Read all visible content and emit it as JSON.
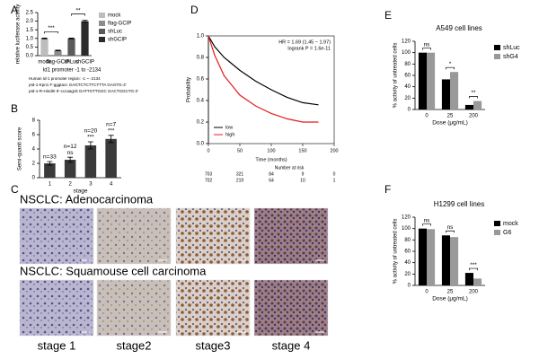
{
  "panel_letters": [
    "A",
    "B",
    "C",
    "D",
    "E",
    "F"
  ],
  "chart_data": [
    {
      "type": "bar",
      "ylabel": "relative luciferase activity",
      "categories": [
        "mock",
        "flag-GCIP",
        "shLuc",
        "shGCIP"
      ],
      "values": [
        1.0,
        0.3,
        1.0,
        2.0
      ],
      "errors": [
        0.02,
        0.02,
        0.02,
        0.05
      ],
      "colors": [
        "#bdbdbd",
        "#8c8c8c",
        "#5a5a5a",
        "#2b2b2b"
      ],
      "ylim": [
        0,
        2.5
      ],
      "yticks": [
        {
          "value": 0,
          "label": "0.0"
        },
        {
          "value": 0.5,
          "label": "0.5"
        },
        {
          "value": 1,
          "label": "1.0"
        },
        {
          "value": 1.5,
          "label": "1.5"
        },
        {
          "value": 2,
          "label": "2.0"
        },
        {
          "value": 2.5,
          "label": "2.5"
        }
      ],
      "legend": true,
      "significance": [
        "***",
        "**"
      ],
      "caption": "Id1 promoter -1 to -2134",
      "notes": [
        "Human Id-1 promoter region: -1 ~ -2134",
        "pId-1-Kpn1 F-gggtacc GAGTCTCTTCTTTA GAGTG-3'",
        "pId-1-R-HindIII 5'-cccaagctt GATTGTTGGC GACTGGCTG-3'"
      ]
    },
    {
      "type": "bar",
      "ylabel": "Semi-quanti score",
      "xlabel": "stage",
      "categories": [
        "1",
        "2",
        "3",
        "4"
      ],
      "values": [
        2.0,
        2.5,
        4.5,
        5.4
      ],
      "errors": [
        0.25,
        0.35,
        0.5,
        0.5
      ],
      "color": "#3a3a3a",
      "ylim": [
        0,
        8
      ],
      "yticks": [
        0,
        2,
        4,
        6,
        8
      ],
      "labels": [
        [
          "n=33"
        ],
        [
          "n=12",
          "ns"
        ],
        [
          "n=20",
          "***"
        ],
        [
          "n=7",
          "***"
        ]
      ]
    },
    {
      "type": "line",
      "ylabel": "Probability",
      "xlabel": "Time (months)",
      "x": [
        0,
        10,
        25,
        50,
        75,
        100,
        125,
        150,
        175
      ],
      "series": [
        {
          "name": "low",
          "color": "#000000",
          "values": [
            1.0,
            0.9,
            0.8,
            0.68,
            0.58,
            0.5,
            0.43,
            0.38,
            0.36
          ]
        },
        {
          "name": "high",
          "color": "#e41a1c",
          "values": [
            1.0,
            0.82,
            0.63,
            0.45,
            0.35,
            0.28,
            0.23,
            0.2,
            0.2
          ]
        }
      ],
      "xlim": [
        0,
        200
      ],
      "xticks": [
        0,
        50,
        100,
        150,
        200
      ],
      "ylim": [
        0,
        1
      ],
      "yticks": [
        {
          "value": 0,
          "label": "0.0"
        },
        {
          "value": 0.2,
          "label": "0.2"
        },
        {
          "value": 0.4,
          "label": "0.4"
        },
        {
          "value": 0.6,
          "label": "0.6"
        },
        {
          "value": 0.8,
          "label": "0.8"
        },
        {
          "value": 1,
          "label": "1.0"
        }
      ],
      "annotations": [
        "HR = 1.69 (1.45 − 1.97)",
        "logrank P = 1.6e-11"
      ],
      "risk_table": {
        "title": "Number at risk",
        "rows": [
          [
            "703",
            "321",
            "84",
            "9",
            "0"
          ],
          [
            "702",
            "219",
            "64",
            "10",
            "1"
          ]
        ]
      }
    },
    {
      "type": "bar",
      "title": "A549 cell lines",
      "ylabel": "% activity of untreated cells",
      "xlabel": "Dose (μg/mL)",
      "categories": [
        "0",
        "25",
        "200"
      ],
      "series": [
        {
          "name": "shLuc",
          "color": "#000000",
          "values": [
            100,
            53,
            8
          ]
        },
        {
          "name": "shG4",
          "color": "#999999",
          "values": [
            100,
            66,
            15
          ]
        }
      ],
      "ylim": [
        0,
        120
      ],
      "yticks": [
        0,
        20,
        40,
        60,
        80,
        100,
        120
      ],
      "significance": [
        "ns",
        "*",
        "**"
      ]
    },
    {
      "type": "bar",
      "title": "H1299 cell lines",
      "ylabel": "% activity of untreated cells",
      "xlabel": "Dose (μg/mL)",
      "categories": [
        "0",
        "25",
        "200"
      ],
      "series": [
        {
          "name": "mock",
          "color": "#000000",
          "values": [
            100,
            88,
            22
          ]
        },
        {
          "name": "G6",
          "color": "#999999",
          "values": [
            99,
            85,
            12
          ]
        }
      ],
      "ylim": [
        0,
        120
      ],
      "yticks": [
        0,
        20,
        40,
        60,
        80,
        100,
        120
      ],
      "significance": [
        "ns",
        "ns",
        "***"
      ]
    }
  ],
  "histology": {
    "titles": [
      "NSCLC: Adenocarcinoma",
      "NSCLC: Squamouse cell carcinoma"
    ],
    "stages": [
      "stage 1",
      "stage2",
      "stage3",
      "stage 4"
    ]
  }
}
